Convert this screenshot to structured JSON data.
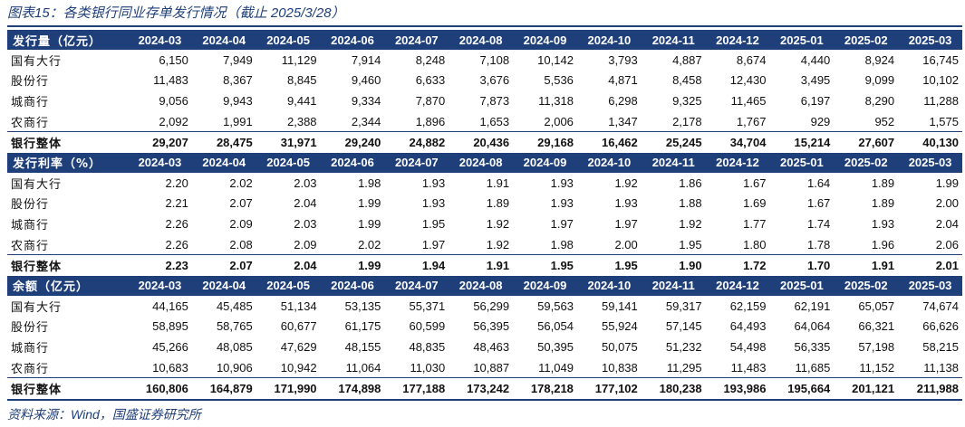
{
  "title": "图表15：各类银行同业存单发行情况（截止 2025/3/28）",
  "source": "资料来源：Wind，国盛证券研究所",
  "colors": {
    "header_bg": "#1f3f7a",
    "header_text": "#ffffff",
    "title_text": "#1f3f7a"
  },
  "months": [
    "2024-03",
    "2024-04",
    "2024-05",
    "2024-06",
    "2024-07",
    "2024-08",
    "2024-09",
    "2024-10",
    "2024-11",
    "2024-12",
    "2025-01",
    "2025-02",
    "2025-03"
  ],
  "sections": [
    {
      "header": "发行量（亿元）",
      "rows": [
        {
          "label": "国有大行",
          "values": [
            "6,150",
            "7,949",
            "11,129",
            "7,914",
            "8,248",
            "7,108",
            "10,142",
            "3,793",
            "4,887",
            "8,674",
            "4,440",
            "8,924",
            "16,745"
          ]
        },
        {
          "label": "股份行",
          "values": [
            "11,483",
            "8,367",
            "8,845",
            "9,460",
            "6,633",
            "3,676",
            "5,536",
            "4,871",
            "8,458",
            "12,430",
            "3,495",
            "9,099",
            "10,102"
          ]
        },
        {
          "label": "城商行",
          "values": [
            "9,056",
            "9,943",
            "9,441",
            "9,334",
            "7,870",
            "7,873",
            "11,318",
            "6,298",
            "9,325",
            "11,465",
            "6,197",
            "8,290",
            "11,288"
          ]
        },
        {
          "label": "农商行",
          "values": [
            "2,092",
            "1,991",
            "2,388",
            "2,344",
            "1,896",
            "1,653",
            "2,006",
            "1,347",
            "2,178",
            "1,767",
            "929",
            "952",
            "1,575"
          ]
        }
      ],
      "total": {
        "label": "银行整体",
        "values": [
          "29,207",
          "28,475",
          "31,971",
          "29,240",
          "24,882",
          "20,436",
          "29,168",
          "16,462",
          "25,245",
          "34,704",
          "15,214",
          "27,607",
          "40,130"
        ]
      }
    },
    {
      "header": "发行利率（%）",
      "rows": [
        {
          "label": "国有大行",
          "values": [
            "2.20",
            "2.02",
            "2.03",
            "1.98",
            "1.93",
            "1.91",
            "1.93",
            "1.92",
            "1.86",
            "1.67",
            "1.64",
            "1.89",
            "1.99"
          ]
        },
        {
          "label": "股份行",
          "values": [
            "2.21",
            "2.07",
            "2.04",
            "1.99",
            "1.93",
            "1.89",
            "1.93",
            "1.93",
            "1.88",
            "1.69",
            "1.67",
            "1.89",
            "2.00"
          ]
        },
        {
          "label": "城商行",
          "values": [
            "2.26",
            "2.09",
            "2.03",
            "1.99",
            "1.95",
            "1.92",
            "1.97",
            "1.97",
            "1.92",
            "1.77",
            "1.74",
            "1.93",
            "2.04"
          ]
        },
        {
          "label": "农商行",
          "values": [
            "2.26",
            "2.08",
            "2.09",
            "2.02",
            "1.97",
            "1.92",
            "1.98",
            "2.00",
            "1.95",
            "1.80",
            "1.78",
            "1.96",
            "2.06"
          ]
        }
      ],
      "total": {
        "label": "银行整体",
        "values": [
          "2.23",
          "2.07",
          "2.04",
          "1.99",
          "1.94",
          "1.91",
          "1.95",
          "1.95",
          "1.90",
          "1.72",
          "1.70",
          "1.91",
          "2.01"
        ]
      }
    },
    {
      "header": "余额（亿元）",
      "rows": [
        {
          "label": "国有大行",
          "values": [
            "44,165",
            "45,485",
            "51,134",
            "53,135",
            "55,371",
            "56,299",
            "59,563",
            "59,141",
            "59,317",
            "62,159",
            "62,191",
            "65,057",
            "74,674"
          ]
        },
        {
          "label": "股份行",
          "values": [
            "58,895",
            "58,765",
            "60,677",
            "61,175",
            "60,599",
            "56,395",
            "56,054",
            "55,924",
            "57,145",
            "64,493",
            "64,064",
            "66,321",
            "66,626"
          ]
        },
        {
          "label": "城商行",
          "values": [
            "45,266",
            "48,085",
            "47,629",
            "48,155",
            "48,835",
            "48,463",
            "50,395",
            "50,075",
            "51,232",
            "54,498",
            "56,335",
            "57,198",
            "58,215"
          ]
        },
        {
          "label": "农商行",
          "values": [
            "10,683",
            "10,906",
            "10,942",
            "11,064",
            "11,030",
            "10,887",
            "11,049",
            "10,838",
            "11,295",
            "11,483",
            "11,685",
            "11,152",
            "11,138"
          ]
        }
      ],
      "total": {
        "label": "银行整体",
        "values": [
          "160,806",
          "164,879",
          "171,990",
          "174,898",
          "177,188",
          "173,242",
          "178,218",
          "177,102",
          "180,238",
          "193,986",
          "195,664",
          "201,121",
          "211,988"
        ]
      }
    }
  ]
}
